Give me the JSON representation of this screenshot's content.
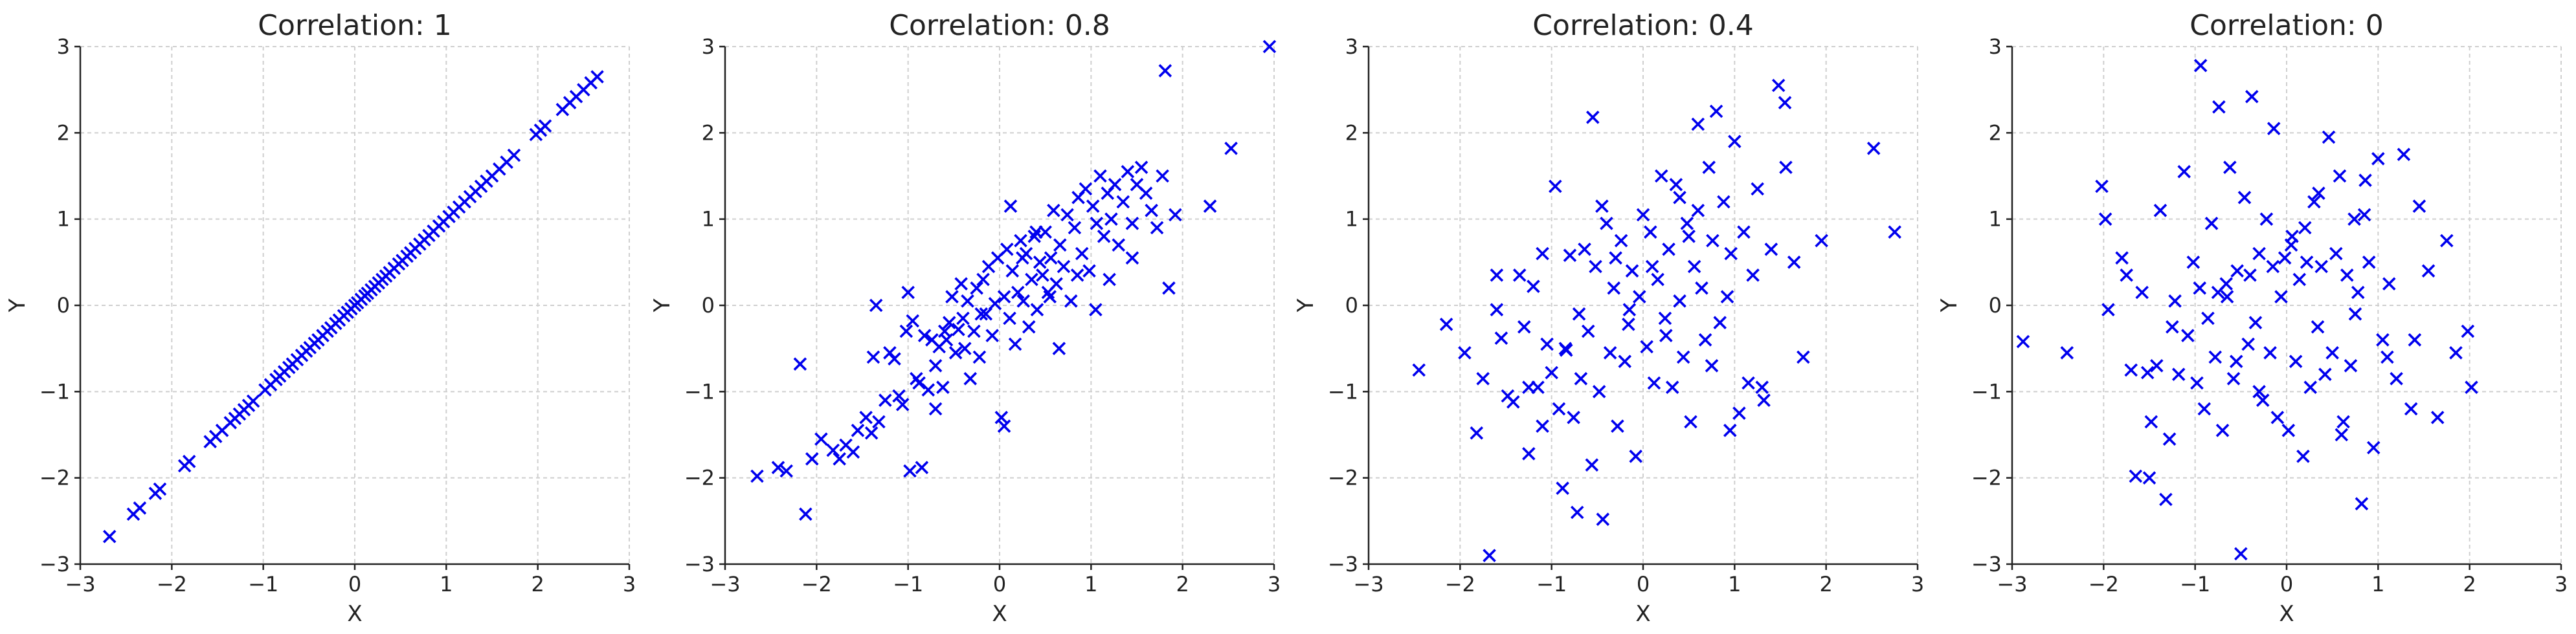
{
  "figure": {
    "marker_color": "#0000ee",
    "grid_color": "#cfcfcf",
    "axis_color": "#222222"
  },
  "chart_data": [
    {
      "type": "scatter",
      "title": "Correlation: 1",
      "xlabel": "X",
      "ylabel": "Y",
      "xlim": [
        -3,
        3
      ],
      "ylim": [
        -3,
        3
      ],
      "xticks": [
        -3,
        -2,
        -1,
        0,
        1,
        2,
        3
      ],
      "yticks": [
        -3,
        -2,
        -1,
        0,
        1,
        2,
        3
      ],
      "xtick_labels": [
        "−3",
        "−2",
        "−1",
        "0",
        "1",
        "2",
        "3"
      ],
      "ytick_labels": [
        "−3",
        "−2",
        "−1",
        "0",
        "1",
        "2",
        "3"
      ],
      "grid": true,
      "marker": "x",
      "x": [
        -2.68,
        -2.42,
        -2.35,
        -2.18,
        -2.13,
        -1.86,
        -1.81,
        -1.58,
        -1.52,
        -1.45,
        -1.36,
        -1.31,
        -1.26,
        -1.21,
        -1.16,
        -1.11,
        -0.98,
        -0.92,
        -0.86,
        -0.82,
        -0.77,
        -0.72,
        -0.68,
        -0.63,
        -0.58,
        -0.53,
        -0.49,
        -0.44,
        -0.4,
        -0.35,
        -0.3,
        -0.26,
        -0.21,
        -0.17,
        -0.12,
        -0.08,
        -0.04,
        0.0,
        0.03,
        0.07,
        0.11,
        0.14,
        0.18,
        0.22,
        0.26,
        0.3,
        0.34,
        0.38,
        0.43,
        0.48,
        0.52,
        0.57,
        0.61,
        0.66,
        0.71,
        0.76,
        0.81,
        0.86,
        0.92,
        0.97,
        1.03,
        1.08,
        1.14,
        1.2,
        1.26,
        1.32,
        1.38,
        1.44,
        1.5,
        1.58,
        1.66,
        1.74,
        1.98,
        2.03,
        2.08,
        2.27,
        2.35,
        2.42,
        2.5,
        2.58,
        2.65
      ],
      "y": [
        -2.68,
        -2.42,
        -2.35,
        -2.18,
        -2.13,
        -1.86,
        -1.81,
        -1.58,
        -1.52,
        -1.45,
        -1.36,
        -1.31,
        -1.26,
        -1.21,
        -1.16,
        -1.11,
        -0.98,
        -0.92,
        -0.86,
        -0.82,
        -0.77,
        -0.72,
        -0.68,
        -0.63,
        -0.58,
        -0.53,
        -0.49,
        -0.44,
        -0.4,
        -0.35,
        -0.3,
        -0.26,
        -0.21,
        -0.17,
        -0.12,
        -0.08,
        -0.04,
        0.0,
        0.03,
        0.07,
        0.11,
        0.14,
        0.18,
        0.22,
        0.26,
        0.3,
        0.34,
        0.38,
        0.43,
        0.48,
        0.52,
        0.57,
        0.61,
        0.66,
        0.71,
        0.76,
        0.81,
        0.86,
        0.92,
        0.97,
        1.03,
        1.08,
        1.14,
        1.2,
        1.26,
        1.32,
        1.38,
        1.44,
        1.5,
        1.58,
        1.66,
        1.74,
        1.98,
        2.03,
        2.08,
        2.27,
        2.35,
        2.42,
        2.5,
        2.58,
        2.65
      ]
    },
    {
      "type": "scatter",
      "title": "Correlation: 0.8",
      "xlabel": "X",
      "ylabel": "Y",
      "xlim": [
        -3,
        3
      ],
      "ylim": [
        -3,
        3
      ],
      "xticks": [
        -3,
        -2,
        -1,
        0,
        1,
        2,
        3
      ],
      "yticks": [
        -3,
        -2,
        -1,
        0,
        1,
        2,
        3
      ],
      "xtick_labels": [
        "−3",
        "−2",
        "−1",
        "0",
        "1",
        "2",
        "3"
      ],
      "ytick_labels": [
        "−3",
        "−2",
        "−1",
        "0",
        "1",
        "2",
        "3"
      ],
      "grid": true,
      "marker": "x",
      "x": [
        -2.65,
        -2.42,
        -2.33,
        -2.18,
        -2.12,
        -2.05,
        -1.95,
        -1.82,
        -1.75,
        -1.68,
        -1.6,
        -1.55,
        -1.46,
        -1.4,
        -1.38,
        -1.32,
        -1.25,
        -1.2,
        -1.15,
        -1.1,
        -1.06,
        -1.02,
        -0.98,
        -0.95,
        -0.91,
        -0.88,
        -0.85,
        -0.82,
        -0.78,
        -0.74,
        -0.7,
        -0.66,
        -0.62,
        -0.58,
        -0.55,
        -0.52,
        -0.48,
        -0.45,
        -0.42,
        -0.38,
        -0.35,
        -0.32,
        -0.28,
        -0.25,
        -0.22,
        -0.18,
        -0.15,
        -0.12,
        -0.08,
        -0.05,
        -0.02,
        0.02,
        0.05,
        0.08,
        0.11,
        0.14,
        0.17,
        0.2,
        0.23,
        0.26,
        0.29,
        0.32,
        0.35,
        0.38,
        0.41,
        0.44,
        0.47,
        0.5,
        0.53,
        0.56,
        0.59,
        0.62,
        0.66,
        0.7,
        0.74,
        0.78,
        0.82,
        0.86,
        0.9,
        0.94,
        0.98,
        1.02,
        1.06,
        1.1,
        1.14,
        1.18,
        1.22,
        1.26,
        1.3,
        1.35,
        1.4,
        1.45,
        1.5,
        1.55,
        1.6,
        1.66,
        1.72,
        1.78,
        1.85,
        1.92,
        2.3,
        2.53,
        1.81,
        2.95,
        -1.35,
        0.12,
        -0.4,
        0.55,
        1.05,
        -0.7,
        0.25,
        0.85,
        -0.2,
        0.4,
        1.2,
        -1.0,
        0.65,
        1.45,
        -0.6,
        0.05
      ],
      "y": [
        -1.98,
        -1.88,
        -1.92,
        -0.68,
        -2.42,
        -1.78,
        -1.55,
        -1.68,
        -1.78,
        -1.62,
        -1.7,
        -1.45,
        -1.3,
        -1.48,
        -0.6,
        -1.35,
        -1.1,
        -0.55,
        -0.62,
        -1.05,
        -1.15,
        -0.3,
        -1.92,
        -0.18,
        -0.85,
        -0.9,
        -1.88,
        -0.35,
        -0.98,
        -0.4,
        -0.7,
        -0.48,
        -0.95,
        -0.4,
        -0.2,
        0.1,
        -0.55,
        -0.28,
        0.25,
        -0.5,
        0.05,
        -0.85,
        -0.3,
        0.2,
        -0.6,
        0.3,
        -0.1,
        0.45,
        -0.35,
        0.02,
        0.55,
        -1.3,
        0.1,
        0.65,
        -0.15,
        0.4,
        -0.45,
        0.15,
        0.75,
        0.05,
        0.6,
        -0.25,
        0.3,
        0.8,
        -0.05,
        0.5,
        0.35,
        0.85,
        0.15,
        0.55,
        1.1,
        0.25,
        0.7,
        0.45,
        1.05,
        0.05,
        0.9,
        1.25,
        0.6,
        1.35,
        0.4,
        1.15,
        0.95,
        1.5,
        0.8,
        1.3,
        1.0,
        1.4,
        0.7,
        1.2,
        1.55,
        0.55,
        1.4,
        1.6,
        1.3,
        1.1,
        0.9,
        1.5,
        0.2,
        1.05,
        1.15,
        1.82,
        2.72,
        3.0,
        0.0,
        1.15,
        -0.15,
        0.1,
        -0.05,
        -1.2,
        0.55,
        0.35,
        -0.1,
        0.85,
        0.3,
        0.15,
        -0.5,
        0.95,
        -0.3,
        -1.4
      ]
    },
    {
      "type": "scatter",
      "title": "Correlation: 0.4",
      "xlabel": "X",
      "ylabel": "Y",
      "xlim": [
        -3,
        3
      ],
      "ylim": [
        -3,
        3
      ],
      "xticks": [
        -3,
        -2,
        -1,
        0,
        1,
        2,
        3
      ],
      "yticks": [
        -3,
        -2,
        -1,
        0,
        1,
        2,
        3
      ],
      "xtick_labels": [
        "−3",
        "−2",
        "−1",
        "0",
        "1",
        "2",
        "3"
      ],
      "ytick_labels": [
        "−3",
        "−2",
        "−1",
        "0",
        "1",
        "2",
        "3"
      ],
      "grid": true,
      "marker": "x",
      "x": [
        -2.45,
        -2.15,
        -1.95,
        -1.82,
        -1.75,
        -1.68,
        -1.6,
        -1.55,
        -1.48,
        -1.42,
        -1.35,
        -1.3,
        -1.25,
        -1.2,
        -1.15,
        -1.1,
        -1.05,
        -1.0,
        -0.96,
        -0.92,
        -0.88,
        -0.84,
        -0.8,
        -0.76,
        -0.72,
        -0.68,
        -0.64,
        -0.6,
        -0.56,
        -0.52,
        -0.48,
        -0.44,
        -0.4,
        -0.36,
        -0.32,
        -0.28,
        -0.24,
        -0.2,
        -0.16,
        -0.12,
        -0.08,
        -0.04,
        0.0,
        0.04,
        0.08,
        0.12,
        0.16,
        0.2,
        0.24,
        0.28,
        0.32,
        0.36,
        0.4,
        0.44,
        0.48,
        0.52,
        0.56,
        0.6,
        0.64,
        0.68,
        0.72,
        0.76,
        0.8,
        0.84,
        0.88,
        0.92,
        0.96,
        1.0,
        1.05,
        1.1,
        1.15,
        1.2,
        1.25,
        1.32,
        1.4,
        1.48,
        1.56,
        1.65,
        1.75,
        1.95,
        2.52,
        2.75,
        -1.6,
        -0.55,
        -0.85,
        0.25,
        0.6,
        -0.3,
        0.95,
        -1.1,
        0.4,
        -0.7,
        1.3,
        0.1,
        -0.45,
        0.75,
        -0.15,
        1.55,
        -1.25,
        0.5
      ],
      "y": [
        -0.75,
        -0.22,
        -0.55,
        -1.48,
        -0.85,
        -2.9,
        -0.05,
        -0.38,
        -1.05,
        -1.12,
        0.35,
        -0.25,
        -1.72,
        0.22,
        -0.95,
        -1.4,
        -0.45,
        -0.78,
        1.38,
        -1.2,
        -2.12,
        -0.52,
        0.58,
        -1.3,
        -2.4,
        -0.85,
        0.65,
        -0.3,
        -1.85,
        0.45,
        -1.0,
        -2.48,
        0.95,
        -0.55,
        0.2,
        -1.4,
        0.75,
        -0.65,
        -0.22,
        0.4,
        -1.75,
        0.1,
        1.05,
        -0.48,
        0.85,
        -0.9,
        0.3,
        1.5,
        -0.15,
        0.65,
        -0.95,
        1.4,
        0.05,
        -0.6,
        0.95,
        -1.35,
        0.45,
        2.1,
        0.2,
        -0.4,
        1.6,
        0.75,
        2.25,
        -0.2,
        1.2,
        0.1,
        0.6,
        1.9,
        -1.25,
        0.85,
        -0.9,
        0.35,
        1.35,
        -1.1,
        0.65,
        2.55,
        1.6,
        0.5,
        -0.6,
        0.75,
        1.82,
        0.85,
        0.35,
        2.18,
        -0.5,
        -0.35,
        1.1,
        0.55,
        -1.45,
        0.6,
        1.25,
        -0.1,
        -0.95,
        0.45,
        1.15,
        -0.7,
        -0.05,
        2.35,
        -0.95,
        0.8
      ]
    },
    {
      "type": "scatter",
      "title": "Correlation: 0",
      "xlabel": "X",
      "ylabel": "Y",
      "xlim": [
        -3,
        3
      ],
      "ylim": [
        -3,
        3
      ],
      "xticks": [
        -3,
        -2,
        -1,
        0,
        1,
        2,
        3
      ],
      "yticks": [
        -3,
        -2,
        -1,
        0,
        1,
        2,
        3
      ],
      "xtick_labels": [
        "−3",
        "−2",
        "−1",
        "0",
        "1",
        "2",
        "3"
      ],
      "ytick_labels": [
        "−3",
        "−2",
        "−1",
        "0",
        "1",
        "2",
        "3"
      ],
      "grid": true,
      "marker": "x",
      "x": [
        -2.88,
        -2.4,
        -2.02,
        -1.98,
        -1.95,
        -1.8,
        -1.75,
        -1.7,
        -1.65,
        -1.58,
        -1.52,
        -1.48,
        -1.42,
        -1.38,
        -1.32,
        -1.28,
        -1.22,
        -1.18,
        -1.12,
        -1.08,
        -1.02,
        -0.98,
        -0.94,
        -0.9,
        -0.86,
        -0.82,
        -0.78,
        -0.74,
        -0.7,
        -0.66,
        -0.62,
        -0.58,
        -0.54,
        -0.5,
        -0.46,
        -0.42,
        -0.38,
        -0.34,
        -0.3,
        -0.26,
        -0.22,
        -0.18,
        -0.14,
        -0.1,
        -0.06,
        -0.02,
        0.02,
        0.06,
        0.1,
        0.14,
        0.18,
        0.22,
        0.26,
        0.3,
        0.34,
        0.38,
        0.42,
        0.46,
        0.5,
        0.54,
        0.58,
        0.62,
        0.66,
        0.7,
        0.74,
        0.78,
        0.82,
        0.86,
        0.9,
        0.95,
        1.0,
        1.05,
        1.12,
        1.2,
        1.28,
        1.36,
        1.45,
        1.55,
        1.65,
        1.75,
        1.85,
        1.98,
        2.02,
        -0.95,
        -0.55,
        0.35,
        -1.25,
        0.85,
        -0.4,
        1.1,
        -0.15,
        0.6,
        -0.75,
        0.2,
        1.4,
        -1.5,
        0.05,
        -0.3,
        0.75,
        -0.65
      ],
      "y": [
        -0.42,
        -0.55,
        1.38,
        1.0,
        -0.05,
        0.55,
        0.35,
        -0.75,
        -1.98,
        0.15,
        -0.78,
        -1.35,
        -0.7,
        1.1,
        -2.25,
        -1.55,
        0.05,
        -0.8,
        1.55,
        -0.35,
        0.5,
        -0.9,
        2.78,
        -1.2,
        -0.15,
        0.95,
        -0.6,
        2.3,
        -1.45,
        0.25,
        1.6,
        -0.85,
        0.4,
        -2.88,
        1.25,
        -0.45,
        2.42,
        -0.2,
        0.6,
        -1.1,
        1.0,
        -0.55,
        2.05,
        -1.3,
        0.1,
        0.55,
        -1.45,
        0.8,
        -0.65,
        0.3,
        -1.75,
        0.5,
        -0.95,
        1.2,
        -0.25,
        0.45,
        -0.8,
        1.95,
        -0.55,
        0.6,
        1.5,
        -1.35,
        0.35,
        -0.7,
        1.0,
        0.15,
        -2.3,
        1.45,
        0.5,
        -1.65,
        1.7,
        -0.4,
        0.25,
        -0.85,
        1.75,
        -1.2,
        1.15,
        0.4,
        -1.3,
        0.75,
        -0.55,
        -0.3,
        -0.95,
        0.2,
        -0.65,
        1.3,
        -0.25,
        1.05,
        0.35,
        -0.6,
        0.45,
        -1.5,
        0.15,
        0.9,
        -0.4,
        -2.0,
        0.7,
        -1.0,
        -0.1,
        0.1
      ]
    }
  ]
}
